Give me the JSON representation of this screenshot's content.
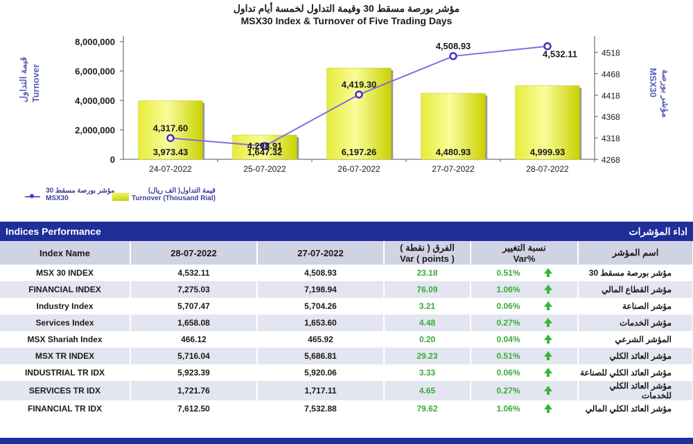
{
  "chart_data": {
    "type": "bar+line",
    "title_ar": "مؤشر بورصة مسقط 30 وقيمة التداول لخمسة أيام تداول",
    "title_en": "MSX30 Index & Turnover of Five Trading Days",
    "categories": [
      "24-07-2022",
      "25-07-2022",
      "26-07-2022",
      "27-07-2022",
      "28-07-2022"
    ],
    "series": [
      {
        "name": "Turnover (Thousand Rial)",
        "name_ar": "قيمة التداول( الف ريال)",
        "axis": "left",
        "kind": "bar",
        "values": [
          3973.43,
          1647.32,
          6197.26,
          4480.93,
          4999.93
        ],
        "value_labels": [
          "3,973.43",
          "1,647.32",
          "6,197.26",
          "4,480.93",
          "4,999.93"
        ]
      },
      {
        "name": "MSX30",
        "name_ar": "مؤشر بورصة مسقط 30",
        "axis": "right",
        "kind": "line",
        "values": [
          4317.6,
          4298.91,
          4419.3,
          4508.93,
          4532.11
        ],
        "value_labels": [
          "4,317.60",
          "4,298.91",
          "4,419.30",
          "4,508.93",
          "4,532.11"
        ]
      }
    ],
    "left_axis": {
      "label_ar": "قيمة التداول",
      "label_en": "Turnover",
      "ylim": [
        0,
        8000000
      ],
      "ticks": [
        "0",
        "2,000,000",
        "4,000,000",
        "6,000,000",
        "8,000,000"
      ],
      "tick_values": [
        0,
        2000000,
        4000000,
        6000000,
        8000000
      ]
    },
    "right_axis": {
      "label_ar": "مؤشر بورصة",
      "label_en": "MSX30",
      "ylim": [
        4268,
        4543
      ],
      "ticks": [
        "4268",
        "4318",
        "4368",
        "4418",
        "4468",
        "4518"
      ],
      "tick_values": [
        4268,
        4318,
        4368,
        4418,
        4468,
        4518
      ]
    },
    "bar_scale_note": "bars plotted in thousand rial x 1000 against left axis",
    "legend": [
      {
        "ar": "مؤشر بورصة مسقط 30",
        "en": "MSX30"
      },
      {
        "ar": "قيمة التداول( الف ريال)",
        "en": "Turnover (Thousand Rial)"
      }
    ]
  },
  "table": {
    "title_en": "Indices Performance",
    "title_ar": "اداء المؤشرات",
    "columns": {
      "name": "Index Name",
      "d1": "28-07-2022",
      "d2": "27-07-2022",
      "var_ar": "الفرق ( نقطة )",
      "var_en": "Var ( points )",
      "pct_ar": "نسبة التغيير",
      "pct_en": "Var%",
      "name_ar": "اسم المؤشر"
    },
    "rows": [
      {
        "name": "MSX 30 INDEX",
        "d1": "4,532.11",
        "d2": "4,508.93",
        "var": "23.18",
        "pct": "0.51%",
        "name_ar": "مؤشر بورصة مسقط 30"
      },
      {
        "name": "FINANCIAL INDEX",
        "d1": "7,275.03",
        "d2": "7,198.94",
        "var": "76.09",
        "pct": "1.06%",
        "name_ar": "مؤشر القطاع المالي"
      },
      {
        "name": "Industry Index",
        "d1": "5,707.47",
        "d2": "5,704.26",
        "var": "3.21",
        "pct": "0.06%",
        "name_ar": "مؤشر الصناعة"
      },
      {
        "name": "Services Index",
        "d1": "1,658.08",
        "d2": "1,653.60",
        "var": "4.48",
        "pct": "0.27%",
        "name_ar": "مؤشر الخدمات"
      },
      {
        "name": "MSX Shariah Index",
        "d1": "466.12",
        "d2": "465.92",
        "var": "0.20",
        "pct": "0.04%",
        "name_ar": "المؤشر الشرعي"
      },
      {
        "name": "MSX TR INDEX",
        "d1": "5,716.04",
        "d2": "5,686.81",
        "var": "29.23",
        "pct": "0.51%",
        "name_ar": "مؤشر العائد الكلي"
      },
      {
        "name": "INDUSTRIAL TR IDX",
        "d1": "5,923.39",
        "d2": "5,920.06",
        "var": "3.33",
        "pct": "0.06%",
        "name_ar": "مؤشر العائد الكلي للصناعة"
      },
      {
        "name": "SERVICES TR IDX",
        "d1": "1,721.76",
        "d2": "1,717.11",
        "var": "4.65",
        "pct": "0.27%",
        "name_ar": "مؤشر العائد الكلي للخدمات"
      },
      {
        "name": "FINANCIAL TR IDX",
        "d1": "7,612.50",
        "d2": "7,532.88",
        "var": "79.62",
        "pct": "1.06%",
        "name_ar": "مؤشر العائد الكلي المالي"
      }
    ]
  }
}
